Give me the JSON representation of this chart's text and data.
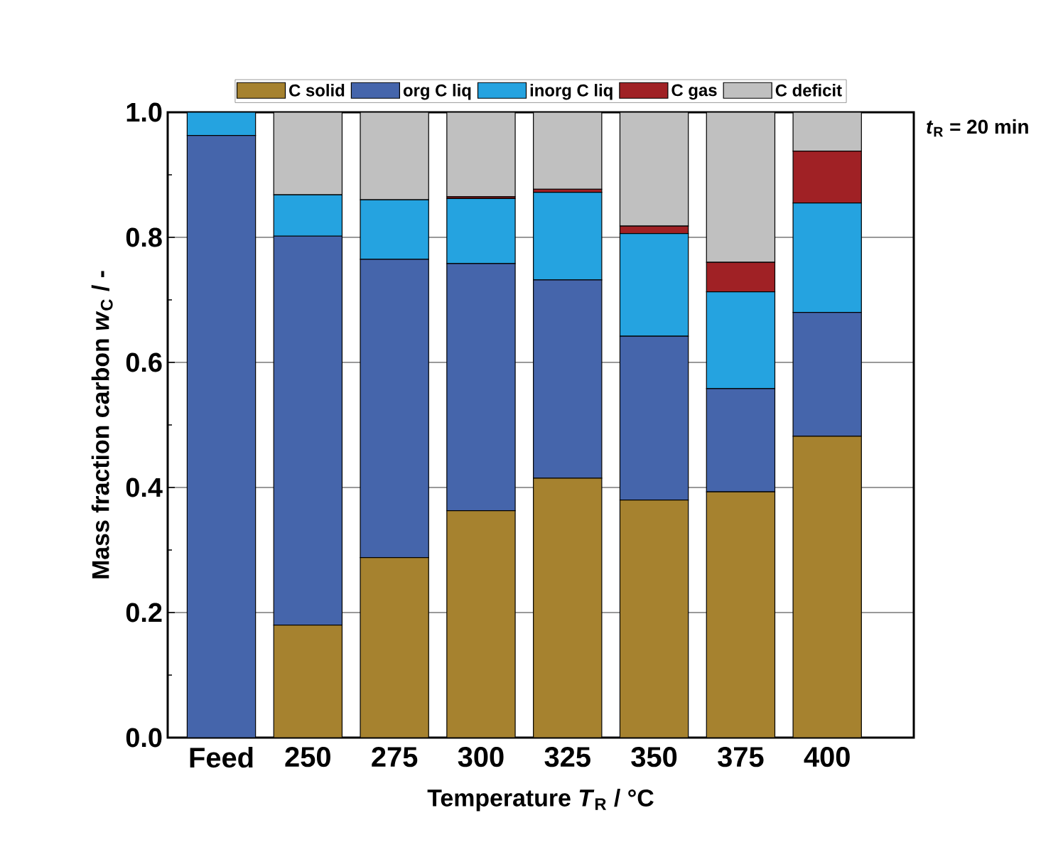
{
  "chart_data": {
    "type": "bar",
    "stacked": true,
    "xlabel": "Temperature *T*$_{R}$ / °C",
    "ylabel": "Mass fraction carbon *w*$_{C}$ / -",
    "annotations": [
      "*t*$_{R}$ = 20 min"
    ],
    "categories": [
      "Feed",
      "250",
      "275",
      "300",
      "325",
      "350",
      "375",
      "400"
    ],
    "series": [
      {
        "name": "C solid",
        "color": "#a6822f",
        "values": [
          0,
          0.18,
          0.288,
          0.363,
          0.415,
          0.38,
          0.393,
          0.482
        ]
      },
      {
        "name": "org C liq",
        "color": "#4565ab",
        "values": [
          0.963,
          0.622,
          0.477,
          0.395,
          0.317,
          0.262,
          0.165,
          0.198
        ]
      },
      {
        "name": "inorg C liq",
        "color": "#25a3e0",
        "values": [
          0.037,
          0.066,
          0.095,
          0.104,
          0.14,
          0.164,
          0.155,
          0.175
        ]
      },
      {
        "name": "C gas",
        "color": "#a02125",
        "values": [
          0,
          0,
          0,
          0.003,
          0.005,
          0.012,
          0.047,
          0.083
        ]
      },
      {
        "name": "C deficit",
        "color": "#c0c0c0",
        "values": [
          0,
          0.132,
          0.14,
          0.135,
          0.123,
          0.182,
          0.24,
          0.062
        ]
      }
    ],
    "ylim": [
      0,
      1
    ],
    "yticks": [
      {
        "value": 0,
        "label": "0.0"
      },
      {
        "value": 0.2,
        "label": "0.2"
      },
      {
        "value": 0.4,
        "label": "0.4"
      },
      {
        "value": 0.6,
        "label": "0.6"
      },
      {
        "value": 0.8,
        "label": "0.8"
      },
      {
        "value": 1,
        "label": "1.0"
      }
    ],
    "grid": "y",
    "legend": "top"
  }
}
